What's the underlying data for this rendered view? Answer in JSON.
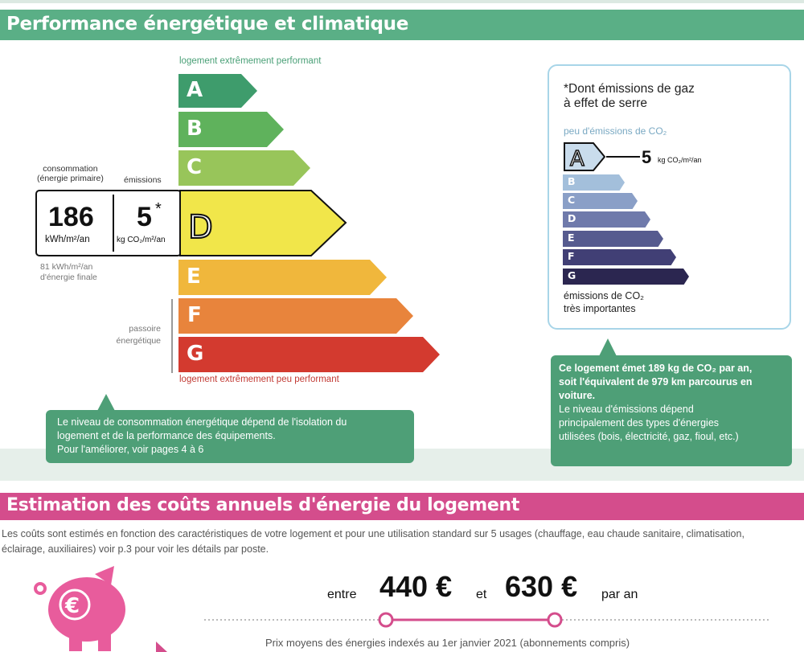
{
  "section1": {
    "title": "Performance énergétique et climatique"
  },
  "dpe": {
    "top_label": "logement extrêmement performant",
    "bottom_label": "logement extrêmement peu performant",
    "grades": [
      {
        "letter": "A",
        "color": "#3e9c6c"
      },
      {
        "letter": "B",
        "color": "#5fb25c"
      },
      {
        "letter": "C",
        "color": "#98c55a"
      },
      {
        "letter": "D",
        "color": "#f1e64a"
      },
      {
        "letter": "E",
        "color": "#f0b73c"
      },
      {
        "letter": "F",
        "color": "#e8843c"
      },
      {
        "letter": "G",
        "color": "#d33a2f"
      }
    ],
    "current_grade": "D",
    "consumption_label_line1": "consommation",
    "consumption_label_line2": "(énergie primaire)",
    "emissions_label": "émissions",
    "consumption_value": "186",
    "consumption_unit": "kWh/m²/an",
    "emissions_value": "5",
    "emissions_star": "*",
    "emissions_unit": "kg CO₂/m²/an",
    "final_energy_line1": "81 kWh/m²/an",
    "final_energy_line2": "d'énergie finale",
    "passoire_line1": "passoire",
    "passoire_line2": "énergétique"
  },
  "callout_left": {
    "line1": "Le niveau de consommation énergétique dépend de l'isolation du",
    "line2": "logement et de la performance des équipements.",
    "line3": "Pour l'améliorer, voir pages 4 à 6"
  },
  "ges": {
    "title_line1": "*Dont émissions de gaz",
    "title_line2": "à effet de serre",
    "top_label": "peu d'émissions de CO₂",
    "bottom_line1": "émissions de CO₂",
    "bottom_line2": "très importantes",
    "current_grade": "A",
    "value": "5",
    "unit": "kg CO₂/m²/an",
    "grades": [
      {
        "letter": "A",
        "color": "#c9dcec"
      },
      {
        "letter": "B",
        "color": "#a3bfdb"
      },
      {
        "letter": "C",
        "color": "#8a9fc7"
      },
      {
        "letter": "D",
        "color": "#6f7aab"
      },
      {
        "letter": "E",
        "color": "#565b8f"
      },
      {
        "letter": "F",
        "color": "#413f75"
      },
      {
        "letter": "G",
        "color": "#2b2650"
      }
    ]
  },
  "callout_right": {
    "bold_line1": "Ce logement émet 189 kg de CO₂ par an,",
    "bold_line2": "soit l'équivalent de 979 km parcourus en",
    "bold_line3": "voiture.",
    "line4": "Le niveau d'émissions dépend",
    "line5": "principalement des types d'énergies",
    "line6": "utilisées (bois, électricité, gaz, fioul, etc.)"
  },
  "section2": {
    "title": "Estimation des coûts annuels d'énergie du logement",
    "desc_line1": "Les coûts sont estimés en fonction des caractéristiques de votre logement et pour une utilisation standard sur 5 usages (chauffage, eau chaude sanitaire, climatisation,",
    "desc_line2": "éclairage, auxiliaires) voir p.3 pour voir les détails par poste."
  },
  "costs": {
    "entre": "entre",
    "min": "440 €",
    "et": "et",
    "max": "630 €",
    "par_an": "par an",
    "prices_note": "Prix moyens des énergies indexés au  1er janvier 2021 (abonnements compris)"
  },
  "colors": {
    "green_band": "#5aaf86",
    "callout_green": "#4e9f77",
    "pink_band": "#d44d8c",
    "pink_icon": "#e85c9c"
  },
  "icons": {
    "piggy": "piggy-bank-icon",
    "euro": "euro-icon"
  }
}
